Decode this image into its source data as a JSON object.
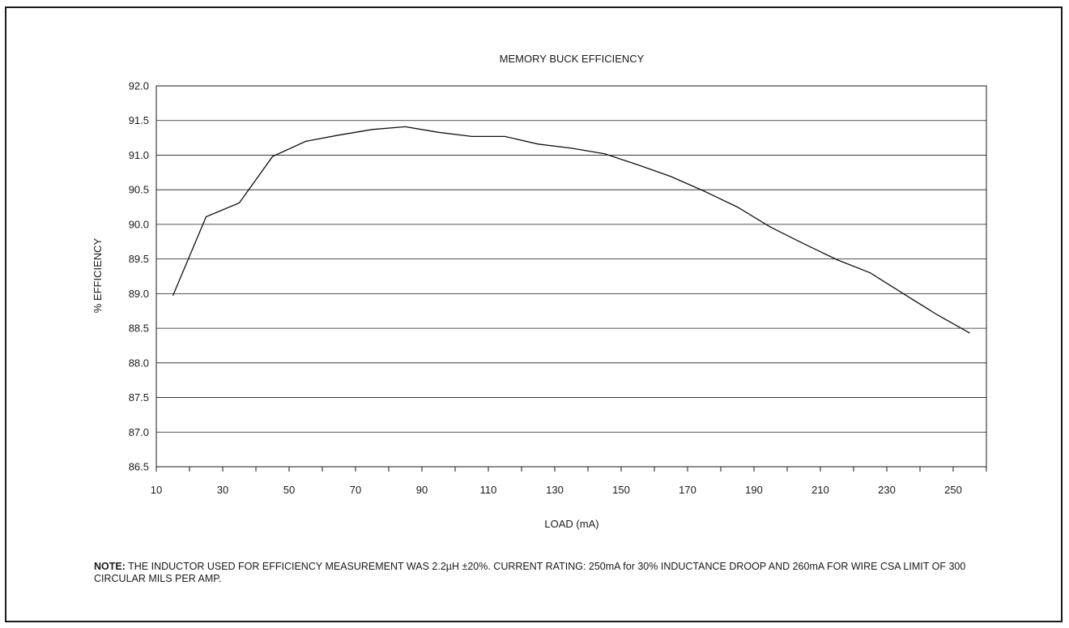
{
  "chart_data": {
    "type": "line",
    "title": "MEMORY BUCK EFFICIENCY",
    "xlabel": "LOAD (mA)",
    "ylabel": "% EFFICIENCY",
    "xlim": [
      10,
      260
    ],
    "ylim": [
      86.5,
      92.0
    ],
    "x_ticks": [
      10,
      30,
      50,
      70,
      90,
      110,
      130,
      150,
      170,
      190,
      210,
      230,
      250
    ],
    "x_tick_labels": [
      "10",
      "30",
      "50",
      "70",
      "90",
      "110",
      "130",
      "150",
      "170",
      "190",
      "210",
      "230",
      "250"
    ],
    "y_ticks": [
      86.5,
      87.0,
      87.5,
      88.0,
      88.5,
      89.0,
      89.5,
      90.0,
      90.5,
      91.0,
      91.5,
      92.0
    ],
    "y_tick_labels": [
      "86.5",
      "87.0",
      "87.5",
      "88.0",
      "88.5",
      "89.0",
      "89.5",
      "90.0",
      "90.5",
      "91.0",
      "91.5",
      "92.0"
    ],
    "grid": "horizontal",
    "series": [
      {
        "x": [
          15,
          25,
          35,
          45,
          55,
          65,
          75,
          85,
          95,
          105,
          115,
          125,
          135,
          145,
          155,
          165,
          175,
          185,
          195,
          205,
          215,
          225,
          235,
          245,
          255
        ],
        "y": [
          88.97,
          90.11,
          90.31,
          90.98,
          91.2,
          91.29,
          91.37,
          91.41,
          91.33,
          91.27,
          91.27,
          91.16,
          91.1,
          91.02,
          90.86,
          90.69,
          90.48,
          90.25,
          89.96,
          89.72,
          89.49,
          89.3,
          89.0,
          88.7,
          88.43
        ]
      }
    ]
  },
  "note": {
    "label": "NOTE:",
    "text": " THE INDUCTOR USED FOR EFFICIENCY MEASUREMENT WAS 2.2µH ±20%. CURRENT RATING: 250mA for 30% INDUCTANCE DROOP AND 260mA FOR WIRE CSA LIMIT OF 300 CIRCULAR MILS PER AMP."
  }
}
